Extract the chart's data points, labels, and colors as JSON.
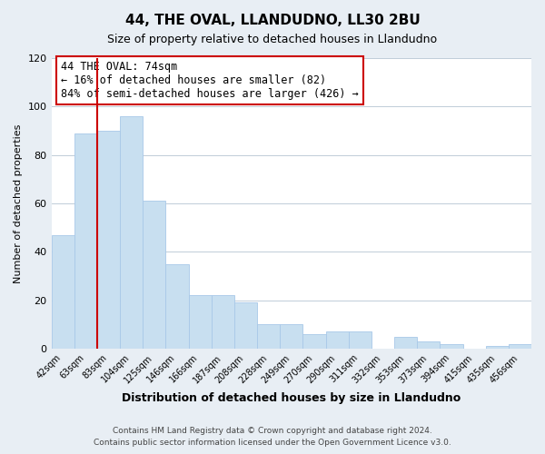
{
  "title": "44, THE OVAL, LLANDUDNO, LL30 2BU",
  "subtitle": "Size of property relative to detached houses in Llandudno",
  "xlabel": "Distribution of detached houses by size in Llandudno",
  "ylabel": "Number of detached properties",
  "bar_labels": [
    "42sqm",
    "63sqm",
    "83sqm",
    "104sqm",
    "125sqm",
    "146sqm",
    "166sqm",
    "187sqm",
    "208sqm",
    "228sqm",
    "249sqm",
    "270sqm",
    "290sqm",
    "311sqm",
    "332sqm",
    "353sqm",
    "373sqm",
    "394sqm",
    "415sqm",
    "435sqm",
    "456sqm"
  ],
  "bar_values": [
    47,
    89,
    90,
    96,
    61,
    35,
    22,
    22,
    19,
    10,
    10,
    6,
    7,
    7,
    0,
    5,
    3,
    2,
    0,
    1,
    2
  ],
  "bar_color": "#c8dff0",
  "bar_edge_color": "#a8c8e8",
  "highlight_color": "#cc0000",
  "ylim": [
    0,
    120
  ],
  "yticks": [
    0,
    20,
    40,
    60,
    80,
    100,
    120
  ],
  "annotation_title": "44 THE OVAL: 74sqm",
  "annotation_line1": "← 16% of detached houses are smaller (82)",
  "annotation_line2": "84% of semi-detached houses are larger (426) →",
  "annotation_box_color": "#ffffff",
  "annotation_box_edge": "#cc0000",
  "footer_line1": "Contains HM Land Registry data © Crown copyright and database right 2024.",
  "footer_line2": "Contains public sector information licensed under the Open Government Licence v3.0.",
  "background_color": "#e8eef4",
  "plot_bg_color": "#ffffff",
  "grid_color": "#c0cdd8"
}
